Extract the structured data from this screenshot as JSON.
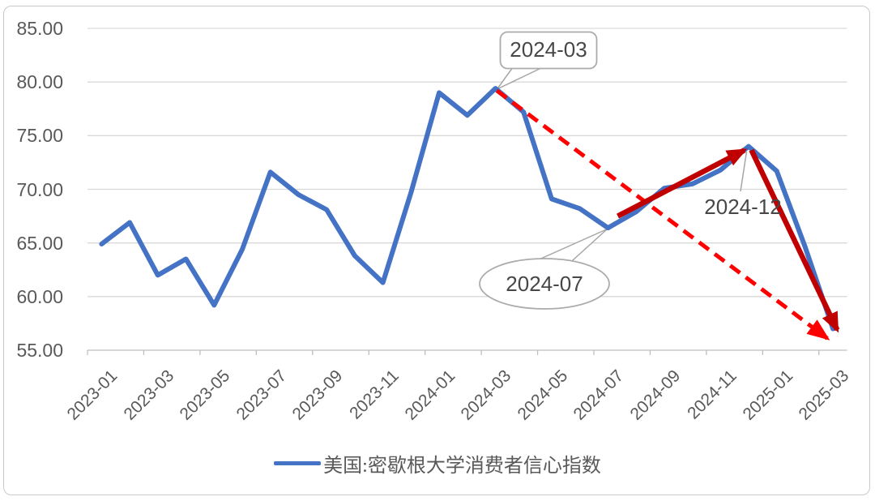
{
  "chart_data": {
    "type": "line",
    "title": "",
    "ylim": [
      55,
      85
    ],
    "grid": "horizontal",
    "legend_position": "bottom",
    "y_tick_labels": [
      "85.00",
      "80.00",
      "75.00",
      "70.00",
      "65.00",
      "60.00",
      "55.00"
    ],
    "x_tick_labels": [
      "2023-01",
      "2023-03",
      "2023-05",
      "2023-07",
      "2023-09",
      "2023-11",
      "2024-01",
      "2024-03",
      "2024-05",
      "2024-07",
      "2024-09",
      "2024-11",
      "2025-01",
      "2025-03"
    ],
    "series": [
      {
        "name": "美国:密歇根大学消费者信心指数",
        "color": "#4472C4",
        "x": [
          "2023-01",
          "2023-02",
          "2023-03",
          "2023-04",
          "2023-05",
          "2023-06",
          "2023-07",
          "2023-08",
          "2023-09",
          "2023-10",
          "2023-11",
          "2023-12",
          "2024-01",
          "2024-02",
          "2024-03",
          "2024-04",
          "2024-05",
          "2024-06",
          "2024-07",
          "2024-08",
          "2024-09",
          "2024-10",
          "2024-11",
          "2024-12",
          "2025-01",
          "2025-02",
          "2025-03"
        ],
        "values": [
          64.9,
          66.9,
          62.0,
          63.5,
          59.2,
          64.4,
          71.6,
          69.5,
          68.1,
          63.8,
          61.3,
          69.7,
          79.0,
          76.9,
          79.4,
          77.2,
          69.1,
          68.2,
          66.4,
          67.9,
          70.1,
          70.5,
          71.8,
          74.0,
          71.7,
          64.7,
          57.0
        ]
      }
    ],
    "arrows": [
      {
        "name": "downtrend-dashed-arrow",
        "style": "dashed",
        "color": "#FF0000",
        "from": {
          "month": "2024-03",
          "mi": 14.05,
          "v": 79.2
        },
        "to": {
          "month": "2025-03",
          "mi": 25.8,
          "v": 56.1
        }
      },
      {
        "name": "rebound-solid-arrow",
        "style": "solid",
        "color": "#C00000",
        "from": {
          "month": "2024-08",
          "mi": 18.35,
          "v": 67.5
        },
        "to": {
          "month": "2024-12",
          "mi": 22.85,
          "v": 73.65
        }
      },
      {
        "name": "plunge-solid-arrow",
        "style": "solid",
        "color": "#C00000",
        "from": {
          "month": "2024-12",
          "mi": 23.1,
          "v": 73.65
        },
        "to": {
          "month": "2025-03",
          "mi": 26.15,
          "v": 56.9
        }
      }
    ]
  },
  "annotations": {
    "peak_callout": "2024-03",
    "trough_callout": "2024-07",
    "second_peak_label": "2024-12"
  },
  "legend": {
    "series_label": "美国:密歇根大学消费者信心指数"
  },
  "colors": {
    "line": "#4472C4",
    "dashed_arrow": "#FF0000",
    "solid_arrow": "#C00000",
    "gridline": "#D9D9D9",
    "axis": "#BFBFBF",
    "axis_text": "#595959",
    "annotation_text": "#474747",
    "callout_border": "#ABABAB"
  }
}
